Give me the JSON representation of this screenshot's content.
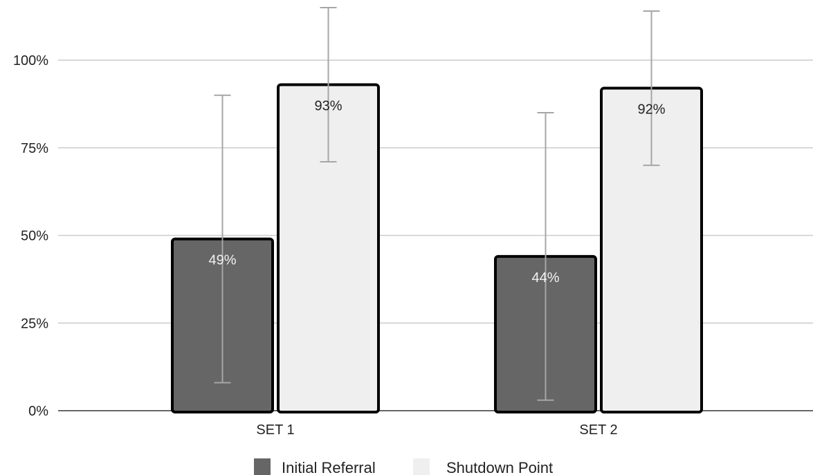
{
  "chart_data": {
    "type": "bar",
    "categories": [
      "SET 1",
      "SET 2"
    ],
    "series": [
      {
        "name": "Initial Referral",
        "values": [
          0.49,
          0.44
        ],
        "labels": [
          "49%",
          "44%"
        ],
        "error_low": [
          0.08,
          0.03
        ],
        "error_high": [
          0.9,
          0.85
        ],
        "color": "#666666",
        "label_color": "#f2f2f2"
      },
      {
        "name": "Shutdown Point",
        "values": [
          0.93,
          0.92
        ],
        "labels": [
          "93%",
          "92%"
        ],
        "error_low": [
          0.71,
          0.7
        ],
        "error_high": [
          1.15,
          1.14
        ],
        "color": "#efefef",
        "label_color": "#222222"
      }
    ],
    "title": "",
    "xlabel": "",
    "ylabel": "",
    "ylim": [
      0,
      1.17
    ],
    "yticks": [
      0,
      0.25,
      0.5,
      0.75,
      1.0
    ],
    "ytick_labels": [
      "0%",
      "25%",
      "50%",
      "75%",
      "100%"
    ],
    "grid": true,
    "legend_position": "bottom",
    "error_bar_color": "#a6a6a6",
    "bar_border_color": "#000000",
    "grid_color": "#cccccc"
  }
}
